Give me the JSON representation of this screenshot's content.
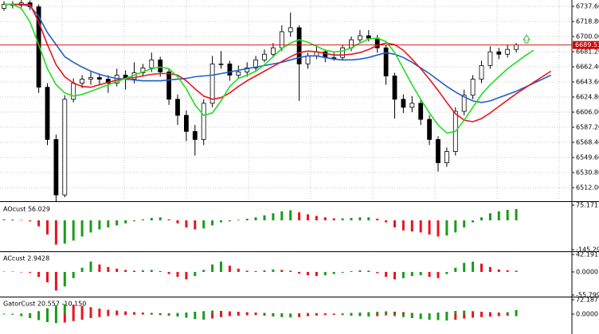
{
  "chart_data": [
    {
      "type": "candlestick",
      "ylim": [
        6496.2,
        6745.5
      ],
      "yticks": [
        {
          "value": 6737.6,
          "label": "6737.60"
        },
        {
          "value": 6718.8,
          "label": "6718.80"
        },
        {
          "value": 6700,
          "label": "6700.00"
        },
        {
          "value": 6681.2,
          "label": "6681.20"
        },
        {
          "value": 6662.4,
          "label": "6662.40"
        },
        {
          "value": 6643.6,
          "label": "6643.60"
        },
        {
          "value": 6624.8,
          "label": "6624.80"
        },
        {
          "value": 6606,
          "label": "6606.00"
        },
        {
          "value": 6587.2,
          "label": "6587.20"
        },
        {
          "value": 6568.4,
          "label": "6568.40"
        },
        {
          "value": 6549.6,
          "label": "6549.60"
        },
        {
          "value": 6530.8,
          "label": "6530.80"
        },
        {
          "value": 6512,
          "label": "6512.00"
        }
      ],
      "grid": true,
      "up_color": "#ffffff",
      "down_color": "#000000",
      "current_price": 6689.53,
      "current_price_color": "#d40000",
      "ohlc": [
        [
          6735,
          6744,
          6732,
          6740
        ],
        [
          6740,
          6744,
          6735,
          6739
        ],
        [
          6739,
          6746,
          6736,
          6742
        ],
        [
          6742,
          6745,
          6733,
          6737
        ],
        [
          6737,
          6740,
          6630,
          6637
        ],
        [
          6637,
          6642,
          6565,
          6572
        ],
        [
          6572,
          6578,
          6494,
          6503
        ],
        [
          6503,
          6627,
          6500,
          6622
        ],
        [
          6622,
          6648,
          6618,
          6642
        ],
        [
          6642,
          6652,
          6636,
          6647
        ],
        [
          6647,
          6656,
          6640,
          6649
        ],
        [
          6649,
          6654,
          6640,
          6647
        ],
        [
          6647,
          6652,
          6630,
          6642
        ],
        [
          6642,
          6660,
          6638,
          6652
        ],
        [
          6652,
          6658,
          6634,
          6647
        ],
        [
          6647,
          6668,
          6642,
          6655
        ],
        [
          6655,
          6666,
          6650,
          6661
        ],
        [
          6661,
          6680,
          6656,
          6671
        ],
        [
          6671,
          6675,
          6650,
          6656
        ],
        [
          6656,
          6660,
          6615,
          6622
        ],
        [
          6622,
          6628,
          6590,
          6602
        ],
        [
          6602,
          6608,
          6570,
          6582
        ],
        [
          6582,
          6590,
          6552,
          6572
        ],
        [
          6572,
          6622,
          6565,
          6617
        ],
        [
          6617,
          6676,
          6612,
          6666
        ],
        [
          6666,
          6682,
          6660,
          6666
        ],
        [
          6666,
          6670,
          6645,
          6652
        ],
        [
          6652,
          6664,
          6648,
          6656
        ],
        [
          6656,
          6668,
          6650,
          6661
        ],
        [
          6661,
          6676,
          6657,
          6671
        ],
        [
          6671,
          6684,
          6668,
          6678
        ],
        [
          6678,
          6692,
          6674,
          6686
        ],
        [
          6686,
          6714,
          6682,
          6706
        ],
        [
          6706,
          6730,
          6700,
          6711
        ],
        [
          6711,
          6714,
          6620,
          6666
        ],
        [
          6666,
          6680,
          6660,
          6676
        ],
        [
          6676,
          6688,
          6672,
          6681
        ],
        [
          6681,
          6684,
          6668,
          6674
        ],
        [
          6674,
          6680,
          6670,
          6674
        ],
        [
          6674,
          6690,
          6670,
          6686
        ],
        [
          6686,
          6700,
          6682,
          6696
        ],
        [
          6696,
          6708,
          6692,
          6701
        ],
        [
          6701,
          6708,
          6694,
          6698
        ],
        [
          6698,
          6702,
          6680,
          6686
        ],
        [
          6686,
          6690,
          6640,
          6651
        ],
        [
          6651,
          6655,
          6598,
          6622
        ],
        [
          6622,
          6628,
          6605,
          6612
        ],
        [
          6612,
          6626,
          6606,
          6617
        ],
        [
          6617,
          6622,
          6590,
          6597
        ],
        [
          6597,
          6602,
          6565,
          6572
        ],
        [
          6572,
          6576,
          6532,
          6543
        ],
        [
          6543,
          6562,
          6538,
          6557
        ],
        [
          6557,
          6612,
          6552,
          6607
        ],
        [
          6607,
          6634,
          6602,
          6627
        ],
        [
          6627,
          6652,
          6622,
          6647
        ],
        [
          6647,
          6670,
          6642,
          6664
        ],
        [
          6664,
          6688,
          6660,
          6681
        ],
        [
          6681,
          6686,
          6672,
          6678
        ],
        [
          6678,
          6690,
          6674,
          6684
        ],
        [
          6684,
          6692,
          6680,
          6689.53
        ]
      ],
      "series": [
        {
          "color": "#1f5fd0",
          "values": [
            6740,
            6740,
            6740,
            6738,
            6725,
            6705,
            6690,
            6675,
            6668,
            6662,
            6657,
            6653,
            6650,
            6648,
            6647,
            6646,
            6645,
            6645,
            6645,
            6646,
            6647,
            6648,
            6650,
            6651,
            6652,
            6654,
            6656,
            6658,
            6660,
            6662,
            6664,
            6666,
            6668,
            6671,
            6674,
            6676,
            6676,
            6674,
            6672,
            6671,
            6671,
            6672,
            6674,
            6677,
            6680,
            6678,
            6674,
            6668,
            6661,
            6654,
            6646,
            6638,
            6631,
            6625,
            6620,
            6618,
            6620,
            6624,
            6628,
            6632,
            6637,
            6642,
            6647,
            6652
          ]
        },
        {
          "color": "#e8141e",
          "values": [
            6740,
            6740,
            6740,
            6740,
            6718,
            6690,
            6665,
            6650,
            6642,
            6638,
            6637,
            6640,
            6643,
            6646,
            6648,
            6649,
            6651,
            6653,
            6654,
            6654,
            6652,
            6645,
            6635,
            6626,
            6622,
            6624,
            6630,
            6638,
            6645,
            6651,
            6657,
            6663,
            6669,
            6675,
            6680,
            6682,
            6681,
            6679,
            6677,
            6677,
            6678,
            6680,
            6684,
            6689,
            6692,
            6690,
            6683,
            6672,
            6660,
            6647,
            6633,
            6618,
            6604,
            6596,
            6594,
            6598,
            6605,
            6613,
            6621,
            6629,
            6636,
            6643,
            6650,
            6657
          ]
        },
        {
          "color": "#22dd22",
          "values": [
            6740,
            6740,
            6735,
            6718,
            6690,
            6660,
            6640,
            6630,
            6626,
            6628,
            6632,
            6636,
            6640,
            6644,
            6648,
            6652,
            6656,
            6660,
            6662,
            6660,
            6650,
            6635,
            6615,
            6602,
            6605,
            6620,
            6638,
            6648,
            6652,
            6657,
            6665,
            6675,
            6685,
            6692,
            6696,
            6693,
            6688,
            6683,
            6681,
            6682,
            6686,
            6692,
            6697,
            6698,
            6694,
            6680,
            6660,
            6640,
            6622,
            6605,
            6590,
            6580,
            6582,
            6596,
            6612,
            6628,
            6640,
            6650,
            6660,
            6668,
            6676,
            6683,
            null,
            null
          ]
        }
      ]
    },
    {
      "type": "histogram",
      "title": "AOcust 56.029",
      "ylim": [
        -145.299,
        75.171
      ],
      "yticks": [
        75.171,
        -145.299
      ],
      "up_color": "#1a9b1a",
      "down_color": "#e8141e",
      "values": [
        5,
        4,
        2,
        -5,
        -30,
        -70,
        -120,
        -115,
        -100,
        -80,
        -60,
        -45,
        -35,
        -25,
        -15,
        -5,
        5,
        12,
        15,
        5,
        -15,
        -35,
        -45,
        -40,
        -25,
        -10,
        -5,
        3,
        8,
        15,
        25,
        35,
        45,
        50,
        40,
        30,
        22,
        15,
        10,
        10,
        12,
        15,
        15,
        8,
        -10,
        -35,
        -50,
        -55,
        -60,
        -70,
        -80,
        -75,
        -60,
        -35,
        -10,
        15,
        35,
        45,
        52,
        56.029
      ]
    },
    {
      "type": "histogram",
      "title": "ACcust 2.9428",
      "ylim": [
        -55.7994,
        42.1913
      ],
      "yticks": [
        42.1913,
        {
          "value": 0,
          "label": "0.0000"
        },
        -55.7994
      ],
      "up_color": "#1a9b1a",
      "down_color": "#e8141e",
      "values": [
        1,
        1,
        0,
        -2,
        -12,
        -25,
        -45,
        -35,
        -15,
        10,
        25,
        18,
        12,
        8,
        5,
        3,
        4,
        5,
        2,
        -5,
        -12,
        -18,
        -10,
        5,
        18,
        25,
        15,
        8,
        3,
        2,
        4,
        6,
        5,
        3,
        -4,
        -8,
        -10,
        -8,
        -5,
        -2,
        2,
        4,
        3,
        -3,
        -12,
        -18,
        -15,
        -10,
        -8,
        -12,
        -15,
        -5,
        10,
        22,
        25,
        20,
        12,
        6,
        4,
        2.9428
      ]
    },
    {
      "type": "gator",
      "title": "GatorCust 20.557 -10.150",
      "ylim": [
        -92,
        72.187
      ],
      "yticks": [
        72.187,
        {
          "value": 0,
          "label": "0.0000"
        }
      ],
      "up_color": "#1a9b1a",
      "down_color": "#e8141e",
      "series": [
        {
          "values": [
            2,
            2,
            3,
            5,
            15,
            30,
            45,
            50,
            48,
            42,
            35,
            28,
            22,
            18,
            14,
            10,
            8,
            6,
            5,
            4,
            6,
            8,
            12,
            15,
            18,
            16,
            14,
            12,
            10,
            8,
            6,
            5,
            4,
            3,
            5,
            6,
            5,
            4,
            3,
            4,
            6,
            8,
            10,
            12,
            14,
            12,
            10,
            6,
            3,
            4,
            8,
            12,
            16,
            18,
            15,
            12,
            10,
            8,
            10,
            20.557
          ]
        },
        {
          "values": [
            -2,
            -3,
            -10,
            -20,
            -30,
            -40,
            -45,
            -42,
            -35,
            -28,
            -20,
            -15,
            -10,
            -6,
            -4,
            -3,
            -2,
            -3,
            -5,
            -8,
            -12,
            -18,
            -25,
            -28,
            -22,
            -15,
            -10,
            -8,
            -6,
            -5,
            -8,
            -12,
            -15,
            -16,
            -15,
            -10,
            -7,
            -5,
            -4,
            -5,
            -8,
            -10,
            -12,
            -10,
            -6,
            -10,
            -15,
            -20,
            -25,
            -28,
            -30,
            -32,
            -28,
            -22,
            -18,
            -15,
            -12,
            -10,
            -8,
            -10.15
          ]
        }
      ]
    }
  ]
}
